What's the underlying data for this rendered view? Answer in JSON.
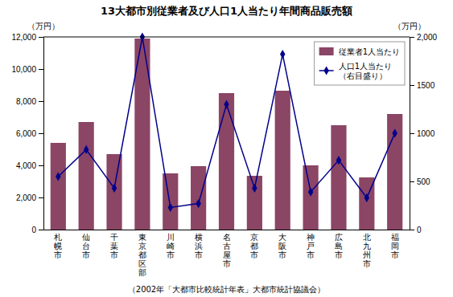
{
  "chart_data": {
    "type": "bar",
    "title": "13大都市別従業者及び人口1人当たり年間商品販売額",
    "ylabel": "（万円）",
    "y2label": "（万円）",
    "annotations": [
      "（2002年「大都市比較統計年表」大都市統計協議会）"
    ],
    "categories": [
      "札\n幌\n市",
      "仙\n台\n市",
      "千\n葉\n市",
      "東\n京\n都\n区\n部",
      "川\n崎\n市",
      "横\n浜\n市",
      "名\n古\n屋\n市",
      "京\n都\n市",
      "大\n阪\n市",
      "神\n戸\n市",
      "広\n島\n市",
      "北\n九\n州\n市",
      "福\n岡\n市"
    ],
    "series": [
      {
        "name": "従業者1人当たり",
        "type": "bar",
        "color": "#8B4565",
        "values": [
          5400,
          6700,
          4700,
          11900,
          3500,
          3950,
          8500,
          3350,
          8650,
          4000,
          6500,
          3250,
          7200
        ]
      },
      {
        "name": "人口1人当たり\n（右目盛り）",
        "type": "line",
        "axis": "y2",
        "color": "#00008B",
        "marker": "diamond",
        "values": [
          550,
          830,
          430,
          2000,
          230,
          270,
          1300,
          430,
          1820,
          390,
          720,
          330,
          1000
        ]
      }
    ],
    "ylim": [
      0,
      12000
    ],
    "yticks": [
      0,
      {
        "value": 2000,
        "label": "2,000"
      },
      {
        "value": 4000,
        "label": "4,000"
      },
      {
        "value": 6000,
        "label": "6,000"
      },
      {
        "value": 8000,
        "label": "8,000"
      },
      {
        "value": 10000,
        "label": "10,000"
      },
      {
        "value": 12000,
        "label": "12,000"
      }
    ],
    "y2lim": [
      0,
      2000
    ],
    "y2ticks": [
      0,
      500,
      1000,
      1500,
      {
        "value": 2000,
        "label": "2,000"
      }
    ],
    "grid": false,
    "legend": "upper right"
  }
}
